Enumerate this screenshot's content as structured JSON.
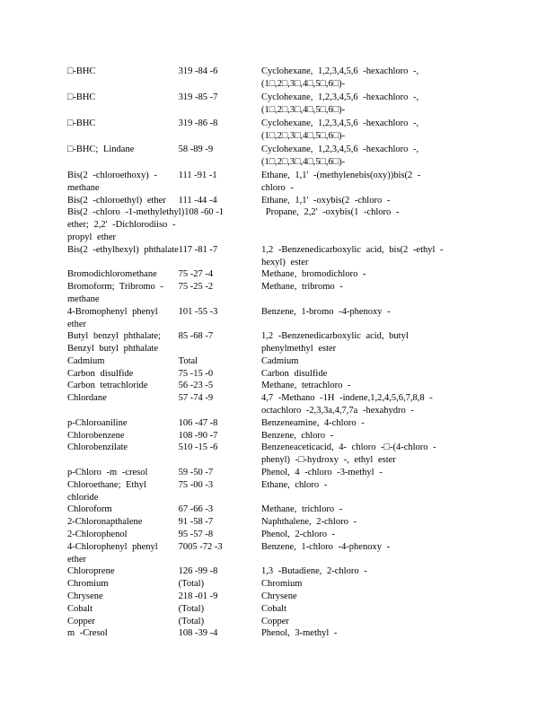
{
  "rows": [
    {
      "name": [
        "□-BHC"
      ],
      "cas": "319 -84 -6",
      "chem": [
        "Cyclohexane, 1,2,3,4,5,6 -hexachloro -,",
        "(1□,2□,3□,4□,5□,6□)-"
      ]
    },
    {
      "name": [
        "□-BHC"
      ],
      "cas": "319 -85 -7",
      "chem": [
        "Cyclohexane, 1,2,3,4,5,6 -hexachloro -,",
        "(1□,2□,3□,4□,5□,6□)-"
      ]
    },
    {
      "name": [
        "□-BHC"
      ],
      "cas": "319 -86 -8",
      "chem": [
        "Cyclohexane, 1,2,3,4,5,6 -hexachloro -,",
        "(1□,2□,3□,4□,5□,6□)-"
      ]
    },
    {
      "name": [
        "□-BHC; Lindane"
      ],
      "cas": "58 -89 -9",
      "chem": [
        "Cyclohexane, 1,2,3,4,5,6 -hexachloro -,",
        "(1□,2□,3□,4□,5□,6□)-"
      ]
    },
    {
      "name": [
        "Bis(2 -chloroethoxy) -",
        "methane"
      ],
      "cas": "111 -91 -1",
      "chem": [
        "Ethane, 1,1' -(methylenebis(oxy))bis(2 -",
        "chloro -"
      ]
    },
    {
      "name": [
        "Bis(2 -chloroethyl) ether"
      ],
      "cas": "111 -44 -4",
      "chem": [
        "Ethane, 1,1' -oxybis(2 -chloro -"
      ]
    },
    {
      "name": [
        "Bis(2 -chloro -1-methylethyl)",
        "ether; 2,2' -Dichlorodiiso -",
        "propyl ether"
      ],
      "cas": "108 -60 -1",
      "chem": [
        "Propane, 2,2' -oxybis(1 -chloro -"
      ]
    },
    {
      "name": [
        "Bis(2 -ethylhexyl) phthalate"
      ],
      "cas": "117 -81 -7",
      "chem": [
        "1,2 -Benzenedicarboxylic acid, bis(2 -ethyl -",
        "hexyl) ester"
      ]
    },
    {
      "name": [
        "Bromodichloromethane"
      ],
      "cas": "75 -27 -4",
      "chem": [
        "Methane, bromodichloro -"
      ]
    },
    {
      "name": [
        "Bromoform; Tribromo -",
        "methane"
      ],
      "cas": "75 -25 -2",
      "chem": [
        "Methane, tribromo -"
      ]
    },
    {
      "name": [
        "4-Bromophenyl phenyl",
        "ether"
      ],
      "cas": "101 -55 -3",
      "chem": [
        "Benzene, 1-bromo -4-phenoxy -"
      ]
    },
    {
      "name": [
        "Butyl benzyl phthalate;",
        "Benzyl butyl phthalate"
      ],
      "cas": "85 -68 -7",
      "chem": [
        "1,2 -Benzenedicarboxylic acid, butyl",
        "phenylmethyl ester"
      ]
    },
    {
      "name": [
        "Cadmium"
      ],
      "cas": "Total",
      "chem": [
        "Cadmium"
      ]
    },
    {
      "name": [
        "Carbon disulfide"
      ],
      "cas": "75 -15 -0",
      "chem": [
        "Carbon disulfide"
      ]
    },
    {
      "name": [
        "Carbon tetrachloride"
      ],
      "cas": "56 -23 -5",
      "chem": [
        "Methane, tetrachloro -"
      ]
    },
    {
      "name": [
        "Chlordane"
      ],
      "cas": "57 -74 -9",
      "chem": [
        "4,7 -Methano -1H -indene,1,2,4,5,6,7,8,8 -",
        "octachloro -2,3,3a,4,7,7a -hexahydro -"
      ]
    },
    {
      "name": [
        "p-Chloroaniline"
      ],
      "cas": "106 -47 -8",
      "chem": [
        "Benzeneamine, 4-chloro -"
      ]
    },
    {
      "name": [
        "Chlorobenzene"
      ],
      "cas": "108 -90 -7",
      "chem": [
        "Benzene, chloro -"
      ]
    },
    {
      "name": [
        "Chlorobenzilate"
      ],
      "cas": "510 -15 -6",
      "chem": [
        "Benzeneaceticacid, 4- chloro -□-(4-chloro -",
        "phenyl) -□-hydroxy -, ethyl ester"
      ]
    },
    {
      "name": [
        "p-Chloro -m -cresol"
      ],
      "cas": "59 -50 -7",
      "chem": [
        "Phenol, 4 -chloro -3-methyl -"
      ]
    },
    {
      "name": [
        "Chloroethane; Ethyl",
        "chloride"
      ],
      "cas": "75 -00 -3",
      "chem": [
        "Ethane, chloro -"
      ]
    },
    {
      "name": [
        "Chloroform"
      ],
      "cas": "67 -66 -3",
      "chem": [
        "Methane, trichloro -"
      ]
    },
    {
      "name": [
        "2-Chloronapthalene"
      ],
      "cas": "91 -58 -7",
      "chem": [
        "Naphthalene, 2-chloro -"
      ]
    },
    {
      "name": [
        "2-Chlorophenol"
      ],
      "cas": "95 -57 -8",
      "chem": [
        "Phenol, 2-chloro -"
      ]
    },
    {
      "name": [
        "4-Chlorophenyl phenyl",
        "ether"
      ],
      "cas": "7005 -72 -3",
      "chem": [
        "Benzene, 1-chloro -4-phenoxy -"
      ]
    },
    {
      "name": [
        "Chloroprene"
      ],
      "cas": "126 -99 -8",
      "chem": [
        "1,3 -Butadiene, 2-chloro -"
      ]
    },
    {
      "name": [
        "Chromium"
      ],
      "cas": "(Total)",
      "chem": [
        "Chromium"
      ]
    },
    {
      "name": [
        "Chrysene"
      ],
      "cas": "218 -01 -9",
      "chem": [
        "Chrysene"
      ]
    },
    {
      "name": [
        "Cobalt"
      ],
      "cas": "(Total)",
      "chem": [
        "Cobalt"
      ]
    },
    {
      "name": [
        "Copper"
      ],
      "cas": "(Total)",
      "chem": [
        "Copper"
      ]
    },
    {
      "name": [
        "m -Cresol"
      ],
      "cas": "108 -39 -4",
      "chem": [
        "Phenol, 3-methyl -"
      ]
    }
  ]
}
